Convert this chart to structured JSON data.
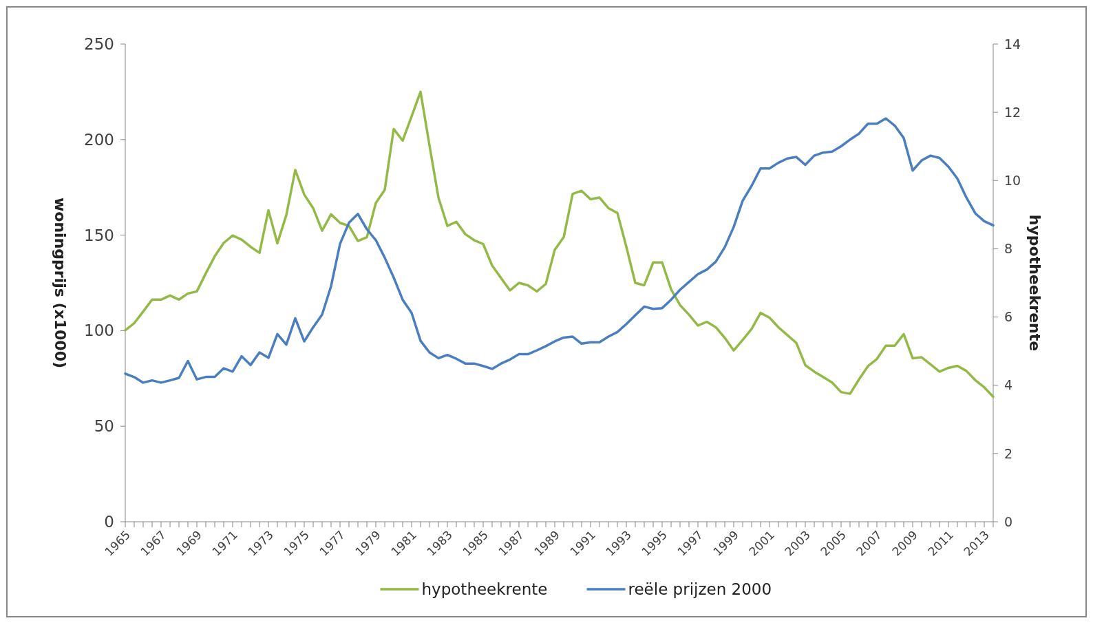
{
  "chart_data": {
    "type": "line",
    "ylabel": "woningprijs (x1000)",
    "y2label": "hypotheekrente",
    "categories": [
      "1965",
      null,
      null,
      null,
      "1967",
      null,
      null,
      null,
      "1969",
      null,
      null,
      null,
      "1971",
      null,
      null,
      null,
      "1973",
      null,
      null,
      null,
      "1975",
      null,
      null,
      null,
      "1977",
      null,
      null,
      null,
      "1979",
      null,
      null,
      null,
      "1981",
      null,
      null,
      null,
      "1983",
      null,
      null,
      null,
      "1985",
      null,
      null,
      null,
      "1987",
      null,
      null,
      null,
      "1989",
      null,
      null,
      null,
      "1991",
      null,
      null,
      null,
      "1993",
      null,
      null,
      null,
      "1995",
      null,
      null,
      null,
      "1997",
      null,
      null,
      null,
      "1999",
      null,
      null,
      null,
      "2001",
      null,
      null,
      null,
      "2003",
      null,
      null,
      null,
      "2005",
      null,
      null,
      null,
      "2007",
      null,
      null,
      null,
      "2009",
      null,
      null,
      null,
      "2011",
      null,
      null,
      null,
      "2013",
      null
    ],
    "ylim": [
      0,
      250
    ],
    "yticks": [
      0,
      50,
      100,
      150,
      200,
      250
    ],
    "y2lim": [
      0,
      14
    ],
    "y2ticks": [
      0,
      2,
      4,
      6,
      8,
      10,
      12,
      14
    ],
    "legend": "bottom",
    "grid": false,
    "line_style": "solid",
    "series": [
      {
        "name": "hypotheekrente",
        "color": "#93b946",
        "axis": "y2",
        "values": [
          5.61,
          5.82,
          6.16,
          6.51,
          6.51,
          6.63,
          6.51,
          6.69,
          6.75,
          7.28,
          7.78,
          8.17,
          8.39,
          8.27,
          8.06,
          7.88,
          9.13,
          8.16,
          8.99,
          10.31,
          9.59,
          9.19,
          8.53,
          9.01,
          8.76,
          8.67,
          8.23,
          8.34,
          9.34,
          9.73,
          11.51,
          11.17,
          11.88,
          12.6,
          11.03,
          9.5,
          8.67,
          8.79,
          8.43,
          8.25,
          8.14,
          7.51,
          7.14,
          6.78,
          7.0,
          6.93,
          6.75,
          6.97,
          7.97,
          8.34,
          9.61,
          9.7,
          9.45,
          9.5,
          9.19,
          9.05,
          8.06,
          7.0,
          6.93,
          7.6,
          7.6,
          6.81,
          6.35,
          6.07,
          5.75,
          5.86,
          5.7,
          5.39,
          5.02,
          5.33,
          5.65,
          6.12,
          5.98,
          5.7,
          5.47,
          5.24,
          4.59,
          4.4,
          4.24,
          4.08,
          3.8,
          3.75,
          4.17,
          4.56,
          4.77,
          5.16,
          5.16,
          5.5,
          4.79,
          4.82,
          4.61,
          4.4,
          4.51,
          4.57,
          4.42,
          4.15,
          3.94,
          3.66
        ]
      },
      {
        "name": "reële prijzen 2000",
        "color": "#4a7ebf",
        "values": [
          77.5,
          75.7,
          72.8,
          74.0,
          72.8,
          74.0,
          75.3,
          84.1,
          74.5,
          75.8,
          75.8,
          80.3,
          78.6,
          86.6,
          82.0,
          88.6,
          85.8,
          98.2,
          92.7,
          106.5,
          94.4,
          101.8,
          108.4,
          123.3,
          145.4,
          156.5,
          161.1,
          153.1,
          147.4,
          138.2,
          127.8,
          116.2,
          109.3,
          94.7,
          88.6,
          85.6,
          87.3,
          85.3,
          82.8,
          82.8,
          81.5,
          80.0,
          82.8,
          84.9,
          87.7,
          87.7,
          89.7,
          91.9,
          94.4,
          96.4,
          96.9,
          93.2,
          93.9,
          93.9,
          96.9,
          99.3,
          103.5,
          108.1,
          112.6,
          111.4,
          111.8,
          116.2,
          121.4,
          125.5,
          129.6,
          132.0,
          136.1,
          143.7,
          154.3,
          168.0,
          175.8,
          184.9,
          184.9,
          187.9,
          190.1,
          190.9,
          186.8,
          191.6,
          193.2,
          193.7,
          196.5,
          200.0,
          203.1,
          208.3,
          208.3,
          211.1,
          207.3,
          200.8,
          183.8,
          189.1,
          191.6,
          190.4,
          185.8,
          179.6,
          169.7,
          161.4,
          157.3,
          155.1
        ]
      }
    ]
  }
}
